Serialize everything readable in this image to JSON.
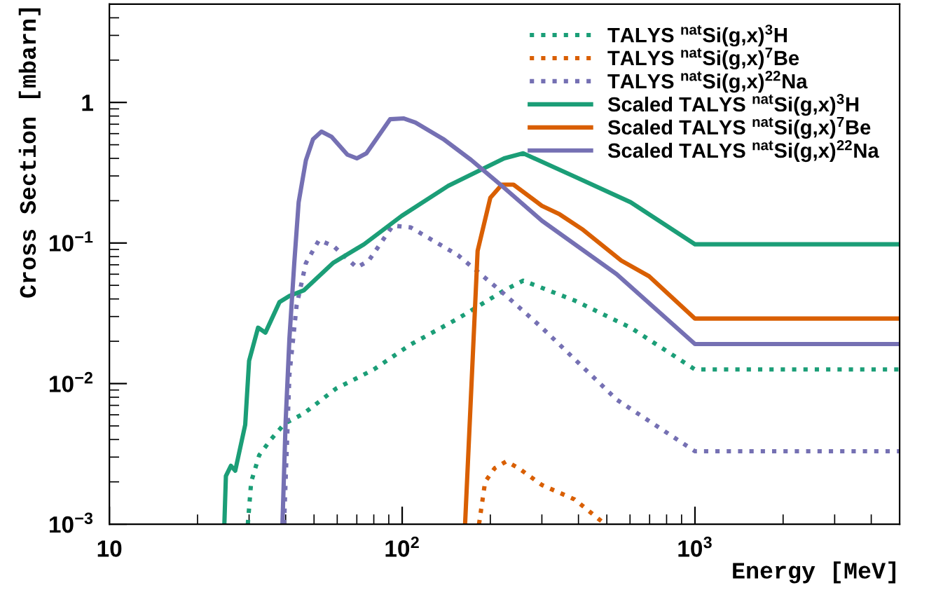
{
  "chart_data": {
    "type": "line",
    "xlabel": "Energy [MeV]",
    "ylabel": "Cross Section [mbarn]",
    "log": "xy",
    "grid": false,
    "legend": "top right",
    "xlim": [
      10,
      5000
    ],
    "ylim": [
      0.001,
      5
    ],
    "xticks": [
      10,
      {
        "value": 100,
        "label": "10$^{2}$"
      },
      {
        "value": 1000,
        "label": "10$^{3}$"
      }
    ],
    "yticks": [
      {
        "value": 0.001,
        "label": "10$^{−3}$"
      },
      {
        "value": 0.01,
        "label": "10$^{−2}$"
      },
      {
        "value": 0.1,
        "label": "10$^{−1}$"
      },
      1
    ],
    "series": [
      {
        "name": "TALYS $^{nat}$Si(g,x)$^{3}$H",
        "color": "#1b9e77",
        "line_style": "dotted",
        "x": [
          29.7,
          30.5,
          32.5,
          35.6,
          39.7,
          46,
          59.4,
          80,
          107,
          155,
          223,
          259,
          388,
          603,
          1000,
          5000
        ],
        "values": [
          0.001,
          0.002,
          0.0031,
          0.004,
          0.0052,
          0.0061,
          0.0092,
          0.0126,
          0.019,
          0.029,
          0.046,
          0.054,
          0.039,
          0.025,
          0.0126,
          0.0126
        ]
      },
      {
        "name": "TALYS $^{nat}$Si(g,x)$^{7}$Be",
        "color": "#d95f02",
        "line_style": "dotted",
        "x": [
          183,
          192,
          207,
          227,
          250,
          300,
          388,
          493
        ],
        "values": [
          0.001,
          0.002,
          0.0025,
          0.0028,
          0.0025,
          0.0019,
          0.0015,
          0.001
        ]
      },
      {
        "name": "TALYS $^{nat}$Si(g,x)$^{22}$Na",
        "color": "#7570b3",
        "line_style": "dotted",
        "x": [
          39.5,
          41.2,
          43.6,
          46.9,
          52,
          58.3,
          70,
          76.9,
          92.9,
          107,
          155,
          216,
          300,
          540,
          1000,
          5000
        ],
        "values": [
          0.001,
          0.0116,
          0.036,
          0.072,
          0.105,
          0.095,
          0.067,
          0.075,
          0.133,
          0.129,
          0.082,
          0.046,
          0.025,
          0.0077,
          0.0033,
          0.0033
        ]
      },
      {
        "name": "Scaled TALYS $^{nat}$Si(g,x)$^{3}$H",
        "color": "#1b9e77",
        "line_style": "solid",
        "x": [
          24.7,
          25,
          26,
          26.9,
          29.1,
          30,
          32.2,
          34.1,
          38.1,
          41.2,
          46.1,
          58,
          74.1,
          99.6,
          143.6,
          223,
          259,
          388,
          603,
          1000,
          5000
        ],
        "values": [
          0.001,
          0.0022,
          0.0026,
          0.0024,
          0.0051,
          0.0145,
          0.025,
          0.023,
          0.038,
          0.042,
          0.046,
          0.072,
          0.098,
          0.156,
          0.255,
          0.4,
          0.435,
          0.297,
          0.195,
          0.098,
          0.098
        ]
      },
      {
        "name": "Scaled TALYS $^{nat}$Si(g,x)$^{7}$Be",
        "color": "#d95f02",
        "line_style": "solid",
        "x": [
          164,
          181,
          200,
          219,
          240,
          300,
          345,
          415,
          560,
          697,
          1000,
          5000
        ],
        "values": [
          0.001,
          0.088,
          0.21,
          0.26,
          0.26,
          0.184,
          0.16,
          0.124,
          0.075,
          0.058,
          0.029,
          0.029
        ]
      },
      {
        "name": "Scaled TALYS $^{nat}$Si(g,x)$^{22}$Na",
        "color": "#7570b3",
        "line_style": "solid",
        "x": [
          39,
          40,
          41.2,
          42.8,
          44.3,
          46.9,
          49.6,
          53,
          57.4,
          65,
          70,
          75.5,
          91,
          101,
          111,
          138,
          172,
          219,
          300,
          540,
          1000,
          5000
        ],
        "values": [
          0.001,
          0.0054,
          0.021,
          0.072,
          0.195,
          0.388,
          0.547,
          0.62,
          0.57,
          0.425,
          0.4,
          0.435,
          0.76,
          0.77,
          0.72,
          0.55,
          0.39,
          0.255,
          0.144,
          0.06,
          0.0191,
          0.0191
        ]
      }
    ]
  }
}
